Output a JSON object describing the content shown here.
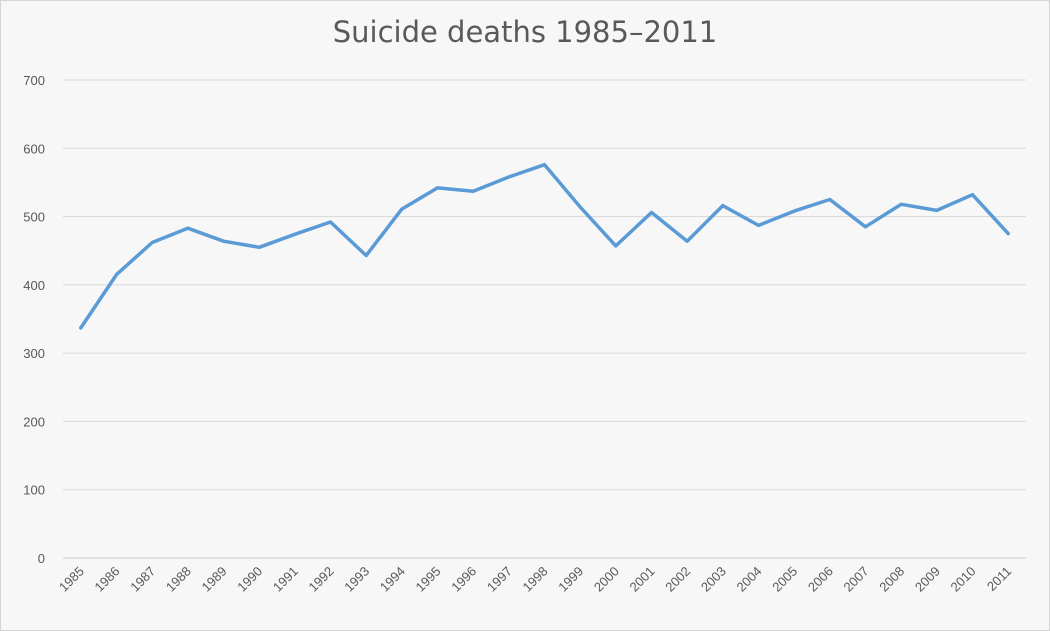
{
  "chart_data": {
    "type": "line",
    "title": "Suicide deaths 1985–2011",
    "xlabel": "",
    "ylabel": "",
    "categories": [
      "1985",
      "1986",
      "1987",
      "1988",
      "1989",
      "1990",
      "1991",
      "1992",
      "1993",
      "1994",
      "1995",
      "1996",
      "1997",
      "1998",
      "1999",
      "2000",
      "2001",
      "2002",
      "2003",
      "2004",
      "2005",
      "2006",
      "2007",
      "2008",
      "2009",
      "2010",
      "2011"
    ],
    "series": [
      {
        "values": [
          337,
          415,
          462,
          483,
          464,
          455,
          474,
          492,
          443,
          511,
          542,
          537,
          558,
          576,
          514,
          457,
          506,
          464,
          516,
          487,
          508,
          525,
          485,
          518,
          509,
          532,
          475
        ]
      }
    ],
    "ylim": [
      0,
      700
    ],
    "yticks": [
      0,
      100,
      200,
      300,
      400,
      500,
      600,
      700
    ],
    "grid": true,
    "legend": "none",
    "colors": {
      "line": "#5b9bd5",
      "grid": "#d9d9d9",
      "text": "#595959",
      "background": "#f7f7f8"
    }
  }
}
